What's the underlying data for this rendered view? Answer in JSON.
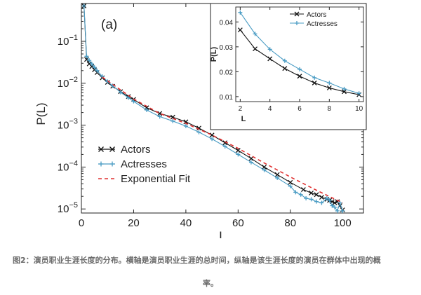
{
  "chart_data": [
    {
      "type": "line",
      "panel_label": "(a)",
      "xlabel": "L",
      "ylabel": "P(L)",
      "xlim": [
        0,
        108
      ],
      "ylim": [
        8e-06,
        0.8
      ],
      "yscale": "log",
      "xticks": [
        0,
        20,
        40,
        60,
        80,
        100
      ],
      "yticks": [
        {
          "value": 0.1,
          "base": "10",
          "exp": "−1"
        },
        {
          "value": 0.01,
          "base": "10",
          "exp": "−2"
        },
        {
          "value": 0.001,
          "base": "10",
          "exp": "−3"
        },
        {
          "value": 0.0001,
          "base": "10",
          "exp": "−4"
        },
        {
          "value": 1e-05,
          "base": "10",
          "exp": "−5"
        }
      ],
      "legend_position": "lower-left",
      "series": [
        {
          "name": "Actors",
          "color": "#111111",
          "marker": "x",
          "x": [
            1,
            2,
            3,
            4,
            5,
            6,
            8,
            10,
            12,
            15,
            18,
            20,
            25,
            30,
            35,
            40,
            45,
            50,
            55,
            60,
            65,
            70,
            75,
            80,
            85,
            88,
            90,
            92,
            94,
            95,
            96,
            97,
            98,
            99,
            100
          ],
          "y": [
            0.7,
            0.037,
            0.029,
            0.025,
            0.021,
            0.018,
            0.0135,
            0.0105,
            0.0085,
            0.0063,
            0.0048,
            0.0041,
            0.0026,
            0.0019,
            0.00155,
            0.0012,
            0.00085,
            0.00058,
            0.00038,
            0.00025,
            0.00016,
            0.0001,
            6.6e-05,
            4.3e-05,
            2.9e-05,
            2.4e-05,
            2.2e-05,
            1.9e-05,
            1.7e-05,
            1.6e-05,
            1.5e-05,
            1.4e-05,
            1.5e-05,
            1.2e-05,
            9.5e-06
          ]
        },
        {
          "name": "Actresses",
          "color": "#4a9cc4",
          "marker": "+",
          "x": [
            1,
            2,
            3,
            4,
            5,
            6,
            8,
            10,
            12,
            15,
            18,
            20,
            25,
            30,
            35,
            40,
            45,
            50,
            55,
            60,
            65,
            70,
            75,
            80,
            82,
            84,
            86,
            88,
            90,
            92,
            94,
            95,
            96,
            97,
            98,
            99,
            100
          ],
          "y": [
            0.7,
            0.044,
            0.035,
            0.029,
            0.024,
            0.02,
            0.0145,
            0.011,
            0.0087,
            0.0061,
            0.0045,
            0.0037,
            0.0023,
            0.0016,
            0.00125,
            0.00095,
            0.00068,
            0.00047,
            0.00031,
            0.0002,
            0.00013,
            8.5e-05,
            5.5e-05,
            3.5e-05,
            2.5e-05,
            2.2e-05,
            1.8e-05,
            1.7e-05,
            1.5e-05,
            1.4e-05,
            1.8e-05,
            1.6e-05,
            1.2e-05,
            1.1e-05,
            9e-06,
            1.4e-05,
            9e-06
          ]
        },
        {
          "name": "Exponential Fit",
          "color": "#e03030",
          "style": "dashed",
          "x": [
            8,
            20,
            30,
            40,
            50,
            60,
            70,
            80,
            90,
            100
          ],
          "y": [
            0.014,
            0.0042,
            0.0019,
            0.0011,
            0.00058,
            0.00028,
            0.000125,
            5.8e-05,
            2.8e-05,
            1.4e-05
          ]
        }
      ]
    },
    {
      "type": "line",
      "xlabel": "L",
      "ylabel": "P(L)",
      "xlim": [
        1.7,
        10.3
      ],
      "ylim": [
        0.008,
        0.046
      ],
      "xticks": [
        2,
        4,
        6,
        8,
        10
      ],
      "yticks": [
        0.01,
        0.02,
        0.03,
        0.04
      ],
      "ytick_labels": [
        "0.01",
        "0.02",
        "0.03",
        "0.04"
      ],
      "legend_position": "top-center",
      "series": [
        {
          "name": "Actors",
          "color": "#111111",
          "marker": "x",
          "x": [
            2,
            3,
            4,
            5,
            6,
            7,
            8,
            9,
            10
          ],
          "y": [
            0.0368,
            0.0292,
            0.0252,
            0.0213,
            0.0182,
            0.0155,
            0.0135,
            0.012,
            0.0108
          ]
        },
        {
          "name": "Actresses",
          "color": "#4a9cc4",
          "marker": "+",
          "x": [
            2,
            3,
            4,
            5,
            6,
            7,
            8,
            9,
            10
          ],
          "y": [
            0.0438,
            0.0352,
            0.029,
            0.0244,
            0.021,
            0.0176,
            0.0155,
            0.0131,
            0.0113
          ]
        }
      ]
    }
  ],
  "caption": {
    "line1": "图2：演员职业生涯长度的分布。横轴是演员职业生涯的总时间，纵轴是该生涯长度的演员在群体中出现的概",
    "line2": "率。"
  }
}
